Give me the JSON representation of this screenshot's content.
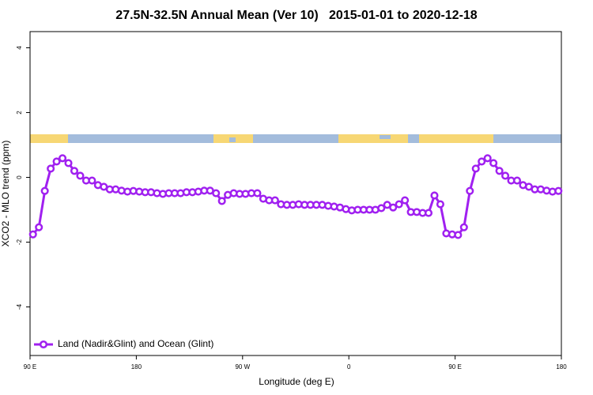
{
  "chart_data": {
    "type": "line",
    "title": "27.5N-32.5N Annual Mean (Ver 10)   2015-01-01 to 2020-12-18",
    "xlabel": "Longitude (deg E)",
    "ylabel": "XCO2 - MLO trend (ppm)",
    "xlim": [
      90,
      540
    ],
    "ylim": [
      -5.5,
      4.5
    ],
    "xticks": [
      {
        "value": 90,
        "label": "90 E"
      },
      180,
      {
        "value": 270,
        "label": "90 W"
      },
      {
        "value": 360,
        "label": "0"
      },
      {
        "value": 450,
        "label": "90 E"
      },
      {
        "value": 540,
        "label": "180"
      }
    ],
    "yticks": [
      -4,
      -2,
      0,
      2,
      4
    ],
    "legend": "lower left",
    "x": [
      92.5,
      97.5,
      102.5,
      107.5,
      112.5,
      117.5,
      122.5,
      127.5,
      132.5,
      137.5,
      142.5,
      147.5,
      152.5,
      157.5,
      162.5,
      167.5,
      172.5,
      177.5,
      182.5,
      187.5,
      192.5,
      197.5,
      202.5,
      207.5,
      212.5,
      217.5,
      222.5,
      227.5,
      232.5,
      237.5,
      242.5,
      247.5,
      252.5,
      257.5,
      262.5,
      267.5,
      272.5,
      277.5,
      282.5,
      287.5,
      292.5,
      297.5,
      302.5,
      307.5,
      312.5,
      317.5,
      322.5,
      327.5,
      332.5,
      337.5,
      342.5,
      347.5,
      352.5,
      357.5,
      362.5,
      367.5,
      372.5,
      377.5,
      382.5,
      387.5,
      392.5,
      397.5,
      402.5,
      407.5,
      412.5,
      417.5,
      422.5,
      427.5,
      432.5,
      437.5,
      442.5,
      447.5,
      452.5,
      457.5,
      462.5,
      467.5,
      472.5,
      477.5,
      482.5,
      487.5,
      492.5,
      497.5,
      502.5,
      507.5,
      512.5,
      517.5,
      522.5,
      527.5,
      532.5,
      537.5
    ],
    "series": [
      {
        "name": "Land (Nadir&Glint) and Ocean (Glint)",
        "color": "#a020f0",
        "values": [
          -1.76,
          -1.54,
          -0.42,
          0.27,
          0.49,
          0.59,
          0.44,
          0.2,
          0.05,
          -0.1,
          -0.1,
          -0.24,
          -0.29,
          -0.37,
          -0.37,
          -0.41,
          -0.44,
          -0.42,
          -0.44,
          -0.46,
          -0.46,
          -0.49,
          -0.51,
          -0.49,
          -0.49,
          -0.49,
          -0.46,
          -0.46,
          -0.44,
          -0.41,
          -0.41,
          -0.49,
          -0.73,
          -0.54,
          -0.49,
          -0.51,
          -0.51,
          -0.49,
          -0.49,
          -0.66,
          -0.71,
          -0.71,
          -0.83,
          -0.85,
          -0.85,
          -0.83,
          -0.85,
          -0.85,
          -0.85,
          -0.85,
          -0.88,
          -0.9,
          -0.93,
          -0.98,
          -1.02,
          -1.0,
          -1.0,
          -1.0,
          -1.0,
          -0.95,
          -0.85,
          -0.93,
          -0.83,
          -0.71,
          -1.07,
          -1.07,
          -1.1,
          -1.1,
          -0.56,
          -0.83,
          -1.73,
          -1.76,
          -1.78,
          -1.54,
          -0.42,
          0.27,
          0.49,
          0.59,
          0.44,
          0.2,
          0.05,
          -0.1,
          -0.1,
          -0.24,
          -0.29,
          -0.37,
          -0.37,
          -0.41,
          -0.44,
          -0.42
        ]
      }
    ]
  }
}
